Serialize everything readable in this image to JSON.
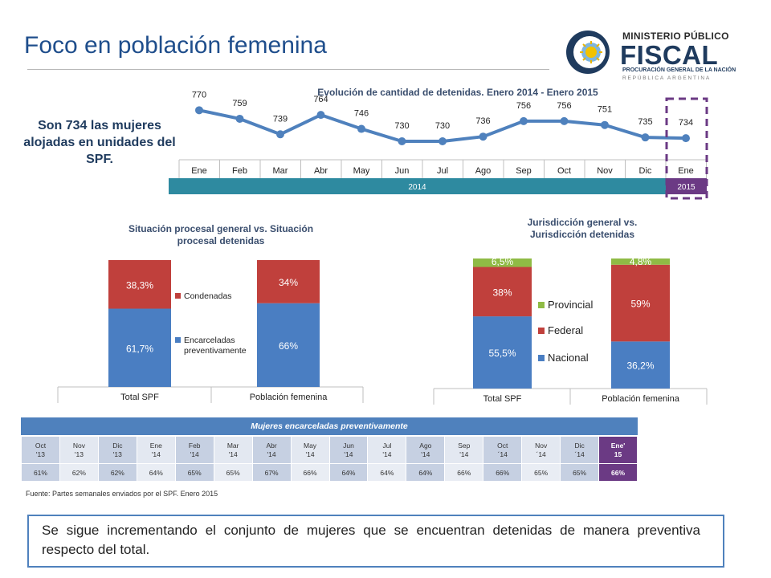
{
  "header": {
    "title": "Foco en población femenina"
  },
  "logo": {
    "line1": "MINISTERIO PÚBLICO",
    "line2": "FISCAL",
    "line3": "PROCURACIÓN GENERAL DE LA NACIÓN",
    "line4": "REPÚBLICA ARGENTINA"
  },
  "lead": {
    "text": "Son 734 las mujeres alojadas en unidades del SPF."
  },
  "colors": {
    "blue": "#4a7ec2",
    "red": "#c0403c",
    "green": "#8fbb45",
    "purple": "#6b3a84",
    "teal": "#2e8aa0",
    "line": "#4f81bd"
  },
  "chart_data": [
    {
      "type": "line",
      "title": "Evolución de cantidad de detenidas. Enero 2014 - Enero 2015",
      "categories": [
        "Ene",
        "Feb",
        "Mar",
        "Abr",
        "May",
        "Jun",
        "Jul",
        "Ago",
        "Sep",
        "Oct",
        "Nov",
        "Dic",
        "Ene"
      ],
      "values": [
        770,
        759,
        739,
        764,
        746,
        730,
        730,
        736,
        756,
        756,
        751,
        735,
        734
      ],
      "years": [
        {
          "label": "2014",
          "span": 12
        },
        {
          "label": "2015",
          "span": 1
        }
      ],
      "highlight_index": 12
    },
    {
      "type": "bar",
      "stacked": true,
      "title": "Situación procesal general vs. Situación procesal detenidas",
      "categories": [
        "Total SPF",
        "Población femenina"
      ],
      "series": [
        {
          "name": "Encarceladas preventivamente",
          "values": [
            61.7,
            66
          ],
          "labels": [
            "61,7%",
            "66%"
          ]
        },
        {
          "name": "Condenadas",
          "values": [
            38.3,
            34
          ],
          "labels": [
            "38,3%",
            "34%"
          ]
        }
      ],
      "ylim": [
        0,
        100
      ],
      "legend": "inside-center"
    },
    {
      "type": "bar",
      "stacked": true,
      "title": "Jurisdicción general vs. Jurisdicción detenidas",
      "categories": [
        "Total SPF",
        "Población femenina"
      ],
      "series": [
        {
          "name": "Nacional",
          "values": [
            55.5,
            36.2
          ],
          "labels": [
            "55,5%",
            "36,2%"
          ]
        },
        {
          "name": "Federal",
          "values": [
            38,
            59
          ],
          "labels": [
            "38%",
            "59%"
          ]
        },
        {
          "name": "Provincial",
          "values": [
            6.5,
            4.8
          ],
          "labels": [
            "6,5%",
            "4,8%"
          ]
        }
      ],
      "ylim": [
        0,
        100
      ],
      "legend": "inside-center"
    },
    {
      "type": "table",
      "title": "Mujeres encarceladas preventivamente",
      "columns": [
        "Oct '13",
        "Nov '13",
        "Dic '13",
        "Ene '14",
        "Feb '14",
        "Mar '14",
        "Abr '14",
        "May '14",
        "Jun '14",
        "Jul '14",
        "Ago '14",
        "Sep '14",
        "Oct ´14",
        "Nov ´14",
        "Dic ´14",
        "Ene' 15"
      ],
      "values": [
        "61%",
        "62%",
        "62%",
        "64%",
        "65%",
        "65%",
        "67%",
        "66%",
        "64%",
        "64%",
        "64%",
        "66%",
        "66%",
        "65%",
        "65%",
        "66%"
      ]
    }
  ],
  "footnote": "Fuente: Partes semanales enviados por el SPF. Enero 2015",
  "bottom": {
    "text": "Se sigue incrementando el conjunto de mujeres que se encuentran detenidas de manera preventiva respecto del total."
  }
}
